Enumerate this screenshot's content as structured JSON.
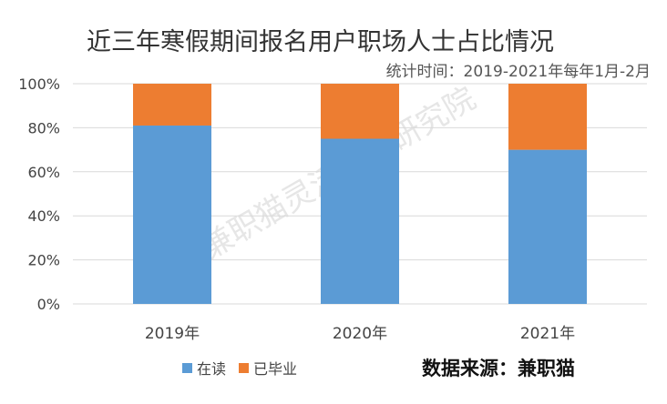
{
  "chart_data": {
    "type": "bar",
    "stacked": true,
    "title": "近三年寒假期间报名用户职场人士占比情况",
    "subtitle": "统计时间：2019-2021年每年1月-2月",
    "categories": [
      "2019年",
      "2020年",
      "2021年"
    ],
    "series": [
      {
        "name": "在读",
        "values": [
          81,
          75,
          70
        ],
        "color": "#5b9bd5"
      },
      {
        "name": "已毕业",
        "values": [
          19,
          25,
          30
        ],
        "color": "#ed7d31"
      }
    ],
    "yticks": [
      "0%",
      "20%",
      "40%",
      "60%",
      "80%",
      "100%"
    ],
    "ylim": [
      0,
      100
    ],
    "grid": true,
    "legend": "bottom-left",
    "source": "数据来源：兼职猫",
    "watermark": "兼职猫灵活就业研究院"
  }
}
